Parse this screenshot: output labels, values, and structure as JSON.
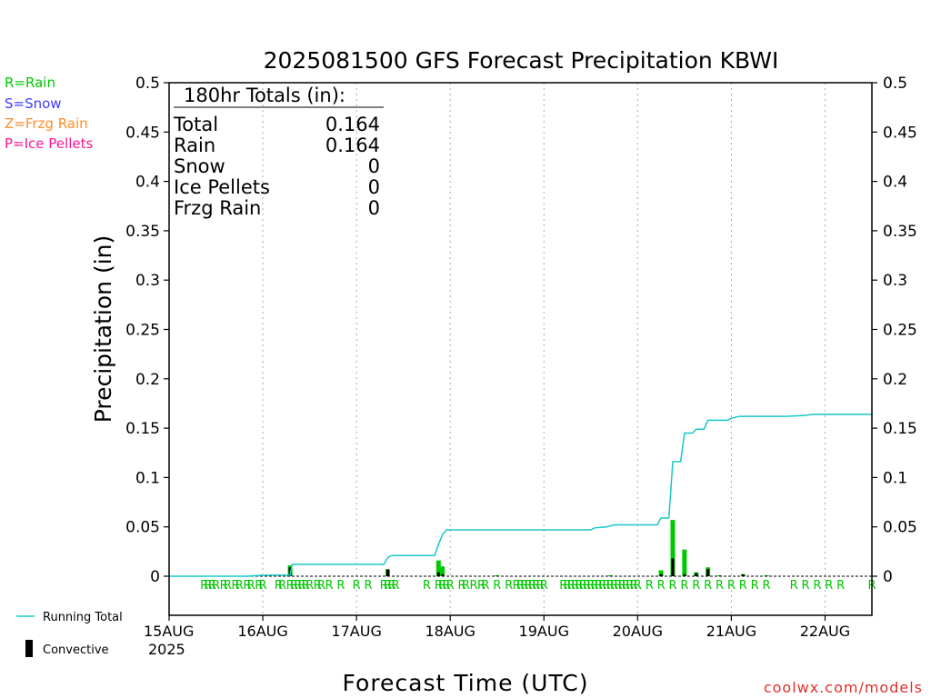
{
  "chart_data": {
    "type": "bar",
    "title": "2025081500 GFS Forecast Precipitation KBWI",
    "xlabel": "Forecast Time (UTC)",
    "ylabel": "Precipitation (in)",
    "ylim": [
      0,
      0.5
    ],
    "y_ticks": [
      {
        "value": 0,
        "label": "0"
      },
      {
        "value": 0.05,
        "label": "0.05"
      },
      {
        "value": 0.1,
        "label": "0.1"
      },
      {
        "value": 0.15,
        "label": "0.15"
      },
      {
        "value": 0.2,
        "label": "0.2"
      },
      {
        "value": 0.25,
        "label": "0.25"
      },
      {
        "value": 0.3,
        "label": "0.3"
      },
      {
        "value": 0.35,
        "label": "0.35"
      },
      {
        "value": 0.4,
        "label": "0.4"
      },
      {
        "value": 0.45,
        "label": "0.45"
      },
      {
        "value": 0.5,
        "label": "0.5"
      }
    ],
    "x_unit": "forecast hour from 2025-08-15 00Z",
    "xlim": [
      0,
      180
    ],
    "x_ticks": [
      {
        "hour": 0,
        "label": "15AUG"
      },
      {
        "hour": 24,
        "label": "16AUG"
      },
      {
        "hour": 48,
        "label": "17AUG"
      },
      {
        "hour": 72,
        "label": "18AUG"
      },
      {
        "hour": 96,
        "label": "19AUG"
      },
      {
        "hour": 120,
        "label": "20AUG"
      },
      {
        "hour": 144,
        "label": "21AUG"
      },
      {
        "hour": 168,
        "label": "22AUG"
      }
    ],
    "year_label": "2025",
    "totals": {
      "heading": "180hr Totals (in):",
      "rows": [
        {
          "label": "Total",
          "value": "0.164"
        },
        {
          "label": "Rain",
          "value": "0.164"
        },
        {
          "label": "Snow",
          "value": "0"
        },
        {
          "label": "Ice Pellets",
          "value": "0"
        },
        {
          "label": "Frzg Rain",
          "value": "0"
        }
      ]
    },
    "type_key": [
      {
        "label": "R=Rain",
        "color": "#00c800"
      },
      {
        "label": "S=Snow",
        "color": "#3c3cff"
      },
      {
        "label": "Z=Frzg Rain",
        "color": "#ff8c28"
      },
      {
        "label": "P=Ice Pellets",
        "color": "#ff1493"
      }
    ],
    "legend": {
      "placement": "bottom-left",
      "running_total_label": "Running Total",
      "convective_label": "Convective"
    },
    "colors": {
      "running_total": "#18c8c8",
      "rain_bar": "#00c800",
      "convective": "#000000",
      "rain_marker": "#00c800",
      "grid": "#aaaaaa"
    },
    "series": [
      {
        "name": "Running Total",
        "kind": "line",
        "points": [
          [
            0,
            0.0
          ],
          [
            10,
            0.0
          ],
          [
            20,
            0.0
          ],
          [
            24,
            0.001
          ],
          [
            31,
            0.001
          ],
          [
            31.5,
            0.012
          ],
          [
            50,
            0.012
          ],
          [
            55,
            0.012
          ],
          [
            56,
            0.019
          ],
          [
            57,
            0.021
          ],
          [
            60,
            0.021
          ],
          [
            63,
            0.021
          ],
          [
            68,
            0.021
          ],
          [
            69,
            0.032
          ],
          [
            70,
            0.042
          ],
          [
            71,
            0.047
          ],
          [
            90,
            0.047
          ],
          [
            105,
            0.047
          ],
          [
            108,
            0.047
          ],
          [
            109,
            0.049
          ],
          [
            112,
            0.05
          ],
          [
            114,
            0.052
          ],
          [
            120,
            0.052
          ],
          [
            125,
            0.052
          ],
          [
            126,
            0.059
          ],
          [
            128,
            0.059
          ],
          [
            129,
            0.116
          ],
          [
            131,
            0.116
          ],
          [
            132,
            0.145
          ],
          [
            134,
            0.145
          ],
          [
            135,
            0.149
          ],
          [
            137,
            0.149
          ],
          [
            138,
            0.158
          ],
          [
            143,
            0.158
          ],
          [
            144,
            0.16
          ],
          [
            145,
            0.161
          ],
          [
            146,
            0.162
          ],
          [
            150,
            0.162
          ],
          [
            158,
            0.162
          ],
          [
            163,
            0.163
          ],
          [
            165,
            0.164
          ],
          [
            180,
            0.164
          ]
        ]
      },
      {
        "name": "Rain",
        "kind": "bar",
        "bars": [
          [
            31,
            0.011
          ],
          [
            56,
            0.007
          ],
          [
            69,
            0.016
          ],
          [
            70,
            0.01
          ],
          [
            84,
            0.001
          ],
          [
            113,
            0.001
          ],
          [
            126,
            0.006
          ],
          [
            129,
            0.057
          ],
          [
            132,
            0.027
          ],
          [
            135,
            0.004
          ],
          [
            138,
            0.009
          ],
          [
            141,
            0.001
          ],
          [
            147,
            0.002
          ],
          [
            153,
            0.001
          ]
        ]
      },
      {
        "name": "Convective",
        "kind": "bar",
        "bars": [
          [
            31,
            0.009
          ],
          [
            56,
            0.007
          ],
          [
            69,
            0.004
          ],
          [
            70,
            0.002
          ],
          [
            126,
            0.002
          ],
          [
            129,
            0.018
          ],
          [
            132,
            0.002
          ],
          [
            135,
            0.003
          ],
          [
            138,
            0.007
          ],
          [
            147,
            0.002
          ]
        ]
      }
    ],
    "precip_type_markers": {
      "label": "R",
      "hours": [
        9,
        10,
        11,
        12,
        14,
        15,
        17,
        18,
        20,
        21,
        23,
        24,
        28,
        29,
        31,
        32,
        33,
        34,
        35,
        36,
        38,
        39,
        41,
        44,
        48,
        51,
        55,
        56,
        57,
        58,
        66,
        69,
        70,
        71,
        72,
        75,
        76,
        78,
        80,
        81,
        84,
        87,
        89,
        90,
        91,
        92,
        93,
        94,
        95,
        96,
        101,
        102,
        103,
        104,
        105,
        106,
        107,
        108,
        109,
        110,
        111,
        112,
        113,
        114,
        115,
        116,
        117,
        118,
        119,
        120,
        123,
        126,
        129,
        132,
        135,
        138,
        141,
        144,
        147,
        150,
        153,
        160,
        163,
        166,
        169,
        172,
        180
      ]
    }
  },
  "watermark": "coolwx.com/models"
}
